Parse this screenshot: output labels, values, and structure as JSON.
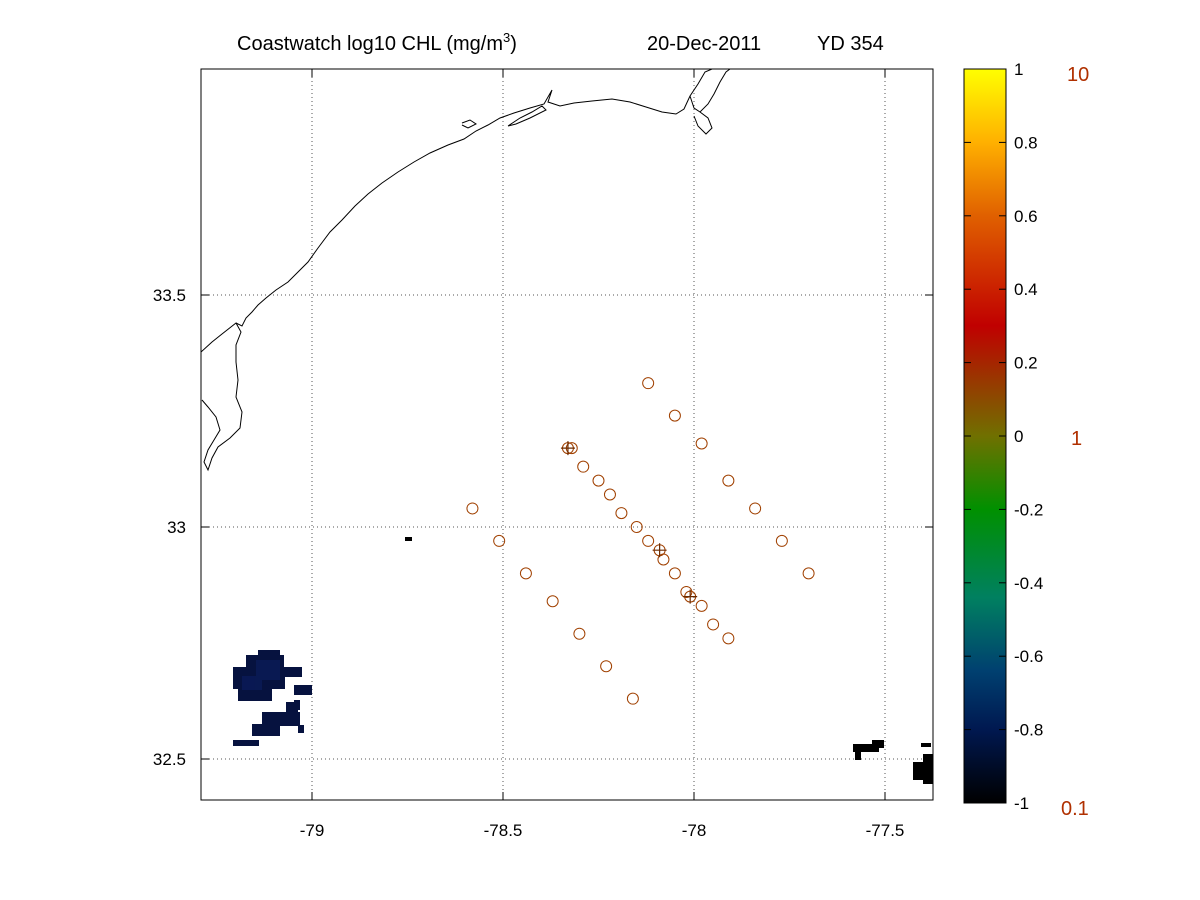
{
  "title": {
    "main": "Coastwatch  log10  CHL (mg/m",
    "superscript": "3",
    "close": ")",
    "date": "20-Dec-2011",
    "yearday": "YD 354"
  },
  "map": {
    "x_ticks": [
      "-79",
      "-78.5",
      "-78",
      "-77.5"
    ],
    "y_ticks": [
      "33.5",
      "33",
      "32.5"
    ],
    "station_color": "#a04000",
    "land_outline_color": "#000000",
    "chl_patch_colors": [
      "#06123f",
      "#0a1a55",
      "#000000"
    ]
  },
  "colorbar": {
    "tick_labels": [
      "1",
      "0.8",
      "0.6",
      "0.4",
      "0.2",
      "0",
      "-0.2",
      "-0.4",
      "-0.6",
      "-0.8",
      "-1"
    ],
    "secondary_labels": [
      "10",
      "1",
      "0.1"
    ],
    "secondary_color": "#b03000",
    "gradient_colors": [
      "#ffff00",
      "#ffb000",
      "#e06000",
      "#c00000",
      "#707000",
      "#009000",
      "#008060",
      "#004070",
      "#001850",
      "#000000"
    ]
  },
  "chart_data": {
    "type": "scatter",
    "title": "Coastwatch log10 CHL (mg/m3)  20-Dec-2011  YD 354",
    "xlim": [
      -79.28,
      -77.4
    ],
    "ylim": [
      32.42,
      33.98
    ],
    "x_ticks": [
      -79,
      -78.5,
      -78,
      -77.5
    ],
    "y_ticks": [
      32.5,
      33,
      33.5
    ],
    "grid": true,
    "series": [
      {
        "markers": "circle",
        "points": [
          [
            -78.12,
            33.31
          ],
          [
            -78.05,
            33.24
          ],
          [
            -77.98,
            33.18
          ],
          [
            -77.91,
            33.1
          ],
          [
            -77.84,
            33.04
          ],
          [
            -77.77,
            32.97
          ],
          [
            -77.7,
            32.9
          ],
          [
            -78.32,
            33.17
          ],
          [
            -78.29,
            33.13
          ],
          [
            -78.25,
            33.1
          ],
          [
            -78.22,
            33.07
          ],
          [
            -78.19,
            33.03
          ],
          [
            -78.15,
            33.0
          ],
          [
            -78.12,
            32.97
          ],
          [
            -78.08,
            32.93
          ],
          [
            -78.05,
            32.9
          ],
          [
            -78.02,
            32.86
          ],
          [
            -77.98,
            32.83
          ],
          [
            -77.95,
            32.79
          ],
          [
            -77.91,
            32.76
          ],
          [
            -78.58,
            33.04
          ],
          [
            -78.51,
            32.97
          ],
          [
            -78.44,
            32.9
          ],
          [
            -78.37,
            32.84
          ],
          [
            -78.3,
            32.77
          ],
          [
            -78.23,
            32.7
          ],
          [
            -78.16,
            32.63
          ]
        ]
      },
      {
        "markers": "circle-plus",
        "points": [
          [
            -78.33,
            33.17
          ],
          [
            -78.09,
            32.95
          ],
          [
            -78.01,
            32.85
          ]
        ]
      }
    ],
    "colorbar": {
      "label_values": [
        -1,
        -0.8,
        -0.6,
        -0.4,
        -0.2,
        0,
        0.2,
        0.4,
        0.6,
        0.8,
        1
      ],
      "linear_scale_labels": [
        0.1,
        1,
        10
      ]
    }
  }
}
